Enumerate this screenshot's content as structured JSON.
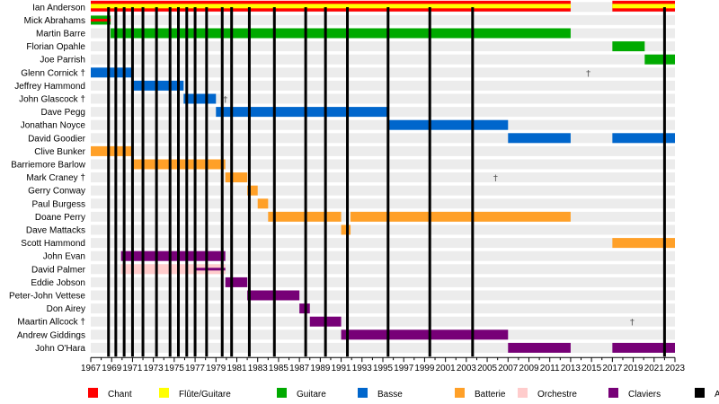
{
  "chart_data": {
    "type": "timeline",
    "title": "",
    "xlabel": "",
    "ylabel": "",
    "xlim": [
      1967,
      2023
    ],
    "x_ticks": [
      "1967",
      "1969",
      "1971",
      "1973",
      "1975",
      "1977",
      "1979",
      "1981",
      "1983",
      "1985",
      "1987",
      "1989",
      "1991",
      "1993",
      "1995",
      "1997",
      "1999",
      "2001",
      "2003",
      "2005",
      "2007",
      "2009",
      "2011",
      "2013",
      "2015",
      "2017",
      "2019",
      "2021",
      "2023"
    ],
    "colors": {
      "Chant": "#ff0000",
      "Flûte/Guitare": "#ffff00",
      "Guitare": "#00aa00",
      "Basse": "#0066cc",
      "Batterie": "#ffa028",
      "Orchestre": "#ffcccc",
      "Claviers": "#770077",
      "Albums": "#000000"
    },
    "members": [
      {
        "name": "Ian Anderson",
        "bars": [
          {
            "role": "Chant",
            "start": 1967,
            "end": 2013,
            "style": "ian"
          },
          {
            "role": "Chant",
            "start": 2017,
            "end": 2023,
            "style": "ian"
          }
        ]
      },
      {
        "name": "Mick Abrahams",
        "bars": [
          {
            "role": "Guitare",
            "start": 1967,
            "end": 1968.9,
            "style": "mick"
          }
        ]
      },
      {
        "name": "Martin Barre",
        "bars": [
          {
            "role": "Guitare",
            "start": 1968.9,
            "end": 2013
          }
        ]
      },
      {
        "name": "Florian Opahle",
        "bars": [
          {
            "role": "Guitare",
            "start": 2017,
            "end": 2020.1
          }
        ]
      },
      {
        "name": "Joe Parrish",
        "bars": [
          {
            "role": "Guitare",
            "start": 2020.1,
            "end": 2023
          }
        ]
      },
      {
        "name": "Glenn Cornick †",
        "bars": [
          {
            "role": "Basse",
            "start": 1967,
            "end": 1970.9
          }
        ],
        "death": 2014.7
      },
      {
        "name": "Jeffrey Hammond",
        "bars": [
          {
            "role": "Basse",
            "start": 1970.9,
            "end": 1975.9
          }
        ]
      },
      {
        "name": "John Glascock †",
        "bars": [
          {
            "role": "Basse",
            "start": 1975.9,
            "end": 1979
          }
        ],
        "death": 1979.9
      },
      {
        "name": "Dave Pegg",
        "bars": [
          {
            "role": "Basse",
            "start": 1979,
            "end": 1995.5
          }
        ]
      },
      {
        "name": "Jonathan Noyce",
        "bars": [
          {
            "role": "Basse",
            "start": 1995.5,
            "end": 2007
          }
        ]
      },
      {
        "name": "David Goodier",
        "bars": [
          {
            "role": "Basse",
            "start": 2007,
            "end": 2013
          },
          {
            "role": "Basse",
            "start": 2017,
            "end": 2023
          }
        ]
      },
      {
        "name": "Clive Bunker",
        "bars": [
          {
            "role": "Batterie",
            "start": 1967,
            "end": 1970.9
          }
        ]
      },
      {
        "name": "Barriemore Barlow",
        "bars": [
          {
            "role": "Batterie",
            "start": 1970.9,
            "end": 1979.9
          }
        ]
      },
      {
        "name": "Mark Craney †",
        "bars": [
          {
            "role": "Batterie",
            "start": 1979.9,
            "end": 1982
          }
        ],
        "death": 2005.8
      },
      {
        "name": "Gerry Conway",
        "bars": [
          {
            "role": "Batterie",
            "start": 1982,
            "end": 1983
          }
        ]
      },
      {
        "name": "Paul Burgess",
        "bars": [
          {
            "role": "Batterie",
            "start": 1983,
            "end": 1984
          }
        ]
      },
      {
        "name": "Doane Perry",
        "bars": [
          {
            "role": "Batterie",
            "start": 1984,
            "end": 1991
          },
          {
            "role": "Batterie",
            "start": 1991.9,
            "end": 2013
          }
        ]
      },
      {
        "name": "Dave Mattacks",
        "bars": [
          {
            "role": "Batterie",
            "start": 1991,
            "end": 1991.9
          }
        ]
      },
      {
        "name": "Scott Hammond",
        "bars": [
          {
            "role": "Batterie",
            "start": 2017,
            "end": 2023
          }
        ]
      },
      {
        "name": "John Evan",
        "bars": [
          {
            "role": "Claviers",
            "start": 1969.9,
            "end": 1979.9
          }
        ]
      },
      {
        "name": "David Palmer",
        "bars": [
          {
            "role": "Orchestre",
            "start": 1969.9,
            "end": 1979.9
          },
          {
            "role": "Claviers",
            "start": 1976.9,
            "end": 1979.9,
            "style": "thin"
          }
        ]
      },
      {
        "name": "Eddie Jobson",
        "bars": [
          {
            "role": "Claviers",
            "start": 1979.9,
            "end": 1982
          }
        ]
      },
      {
        "name": "Peter-John Vettese",
        "bars": [
          {
            "role": "Claviers",
            "start": 1982,
            "end": 1987
          }
        ]
      },
      {
        "name": "Don Airey",
        "bars": [
          {
            "role": "Claviers",
            "start": 1987,
            "end": 1988
          }
        ]
      },
      {
        "name": "Maartin Allcock †",
        "bars": [
          {
            "role": "Claviers",
            "start": 1988,
            "end": 1991
          }
        ],
        "death": 2018.9
      },
      {
        "name": "Andrew Giddings",
        "bars": [
          {
            "role": "Claviers",
            "start": 1991,
            "end": 2007
          }
        ]
      },
      {
        "name": "John O'Hara",
        "bars": [
          {
            "role": "Claviers",
            "start": 2007,
            "end": 2013
          },
          {
            "role": "Claviers",
            "start": 2017,
            "end": 2023
          }
        ]
      }
    ],
    "albums": [
      1968.7,
      1969.4,
      1970.2,
      1971,
      1972,
      1973.3,
      1974.6,
      1975.4,
      1976.2,
      1977,
      1978.1,
      1979.6,
      1980.5,
      1982.2,
      1984.6,
      1987.6,
      1989.5,
      1991.6,
      1995.5,
      1999.5,
      2003.6,
      2022
    ],
    "legend": {
      "placement": "bottom",
      "entries": [
        {
          "label": "Chant",
          "role": "Chant"
        },
        {
          "label": "Flûte/Guitare",
          "role": "Flûte/Guitare"
        },
        {
          "label": "Guitare",
          "role": "Guitare"
        },
        {
          "label": "Basse",
          "role": "Basse"
        },
        {
          "label": "Batterie",
          "role": "Batterie"
        },
        {
          "label": "Orchestre",
          "role": "Orchestre"
        },
        {
          "label": "Claviers",
          "role": "Claviers"
        },
        {
          "label": "A",
          "role": "Albums"
        }
      ]
    },
    "death_marker": "†"
  }
}
